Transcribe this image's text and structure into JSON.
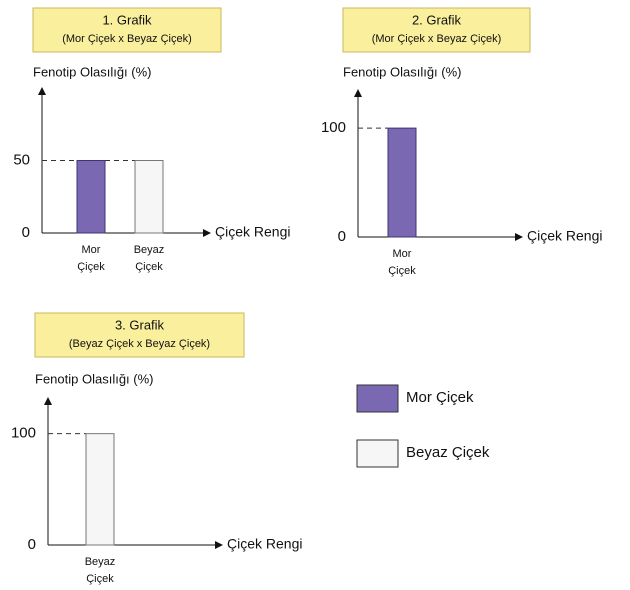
{
  "chart_data": [
    {
      "type": "bar",
      "title": "1. Grafik",
      "subtitle": "(Mor Çiçek x Beyaz Çiçek)",
      "y_label": "Fenotip Olasılığı (%)",
      "x_label": "Çiçek Rengi",
      "categories": [
        "Mor Çiçek",
        "Beyaz Çiçek"
      ],
      "values": [
        50,
        50
      ],
      "ylim": [
        0,
        100
      ],
      "yticks": [
        0,
        50
      ]
    },
    {
      "type": "bar",
      "title": "2. Grafik",
      "subtitle": "(Mor Çiçek x Beyaz Çiçek)",
      "y_label": "Fenotip Olasılığı (%)",
      "x_label": "Çiçek Rengi",
      "categories": [
        "Mor Çiçek"
      ],
      "values": [
        100
      ],
      "ylim": [
        0,
        135
      ],
      "yticks": [
        0,
        100
      ]
    },
    {
      "type": "bar",
      "title": "3. Grafik",
      "subtitle": "(Beyaz Çiçek x Beyaz Çiçek)",
      "y_label": "Fenotip Olasılığı (%)",
      "x_label": "Çiçek Rengi",
      "categories": [
        "Beyaz Çiçek"
      ],
      "values": [
        100
      ],
      "ylim": [
        0,
        132
      ],
      "yticks": [
        0,
        100
      ]
    }
  ],
  "legend": [
    {
      "name": "Mor Çiçek",
      "color": "#7a68b3"
    },
    {
      "name": "Beyaz Çiçek",
      "color": "#f6f6f6"
    }
  ]
}
